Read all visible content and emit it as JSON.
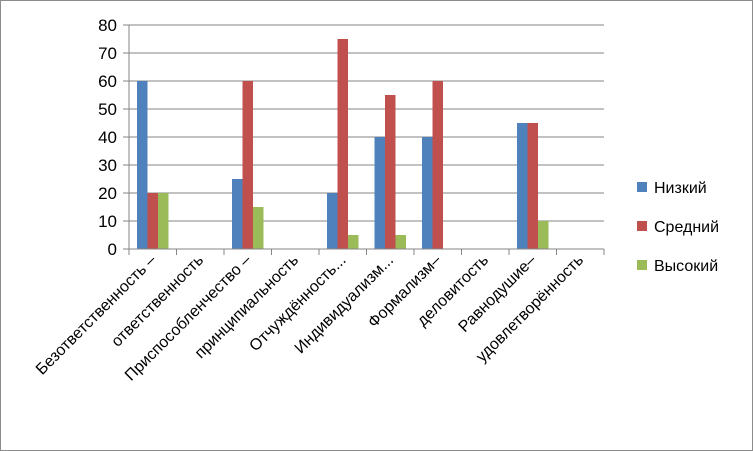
{
  "chart_data": {
    "type": "bar",
    "title": "",
    "xlabel": "",
    "ylabel": "",
    "ylim": [
      0,
      80
    ],
    "yticks": [
      0,
      10,
      20,
      30,
      40,
      50,
      60,
      70,
      80
    ],
    "grid": true,
    "legend_position": "right",
    "categories": [
      "Безответственность –",
      "ответственность",
      "Приспособленчество –",
      "принципиальность",
      "Отчуждённость...",
      "Индивидуализм...",
      "Формализм–",
      "деловитость",
      "Равнодушие–",
      "удовлетворённость"
    ],
    "series": [
      {
        "name": "Низкий",
        "color": "#4f81bd",
        "values": [
          60,
          null,
          25,
          null,
          20,
          40,
          40,
          null,
          45,
          null
        ]
      },
      {
        "name": "Средний",
        "color": "#c0504d",
        "values": [
          20,
          null,
          60,
          null,
          75,
          55,
          60,
          null,
          45,
          null
        ]
      },
      {
        "name": "Высокий",
        "color": "#9bbb59",
        "values": [
          20,
          null,
          15,
          null,
          5,
          5,
          null,
          null,
          10,
          null
        ]
      }
    ]
  }
}
